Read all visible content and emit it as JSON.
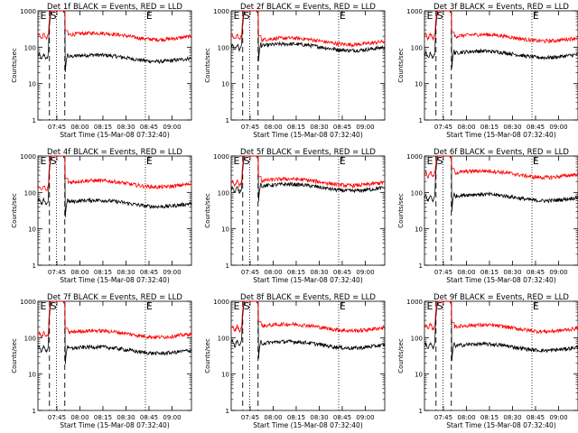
{
  "chart_data": {
    "type": "line",
    "xlabel_template": "Start Time ({start})",
    "start_time": "15-Mar-08 07:32:40",
    "ylabel": "Counts/sec",
    "yscale": "log",
    "ylim": [
      1,
      1000
    ],
    "y_ticks": [
      1,
      10,
      100,
      1000
    ],
    "x_ticks": [
      "07:45",
      "08:00",
      "08:15",
      "08:30",
      "08:45",
      "09:00"
    ],
    "markers": {
      "E": "E",
      "S": "S"
    },
    "colors": {
      "events": "#000000",
      "lld": "#ff0000"
    },
    "panels": [
      {
        "title": "Det 1f BLACK = Events, RED = LLD",
        "events_level": 55,
        "lld_level": 220,
        "events_pre": 55,
        "lld_pre": 200
      },
      {
        "title": "Det 2f BLACK = Events, RED = LLD",
        "events_level": 110,
        "lld_level": 160,
        "events_pre": 100,
        "lld_pre": 190
      },
      {
        "title": "Det 3f BLACK = Events, RED = LLD",
        "events_level": 70,
        "lld_level": 200,
        "events_pre": 60,
        "lld_pre": 200
      },
      {
        "title": "Det 4f BLACK = Events, RED = LLD",
        "events_level": 55,
        "lld_level": 190,
        "events_pre": 55,
        "lld_pre": 130
      },
      {
        "title": "Det 5f BLACK = Events, RED = LLD",
        "events_level": 150,
        "lld_level": 210,
        "events_pre": 120,
        "lld_pre": 180
      },
      {
        "title": "Det 6f BLACK = Events, RED = LLD",
        "events_level": 80,
        "lld_level": 350,
        "events_pre": 70,
        "lld_pre": 310
      },
      {
        "title": "Det 7f BLACK = Events, RED = LLD",
        "events_level": 50,
        "lld_level": 140,
        "events_pre": 50,
        "lld_pre": 120
      },
      {
        "title": "Det 8f BLACK = Events, RED = LLD",
        "events_level": 70,
        "lld_level": 210,
        "events_pre": 70,
        "lld_pre": 180
      },
      {
        "title": "Det 9f BLACK = Events, RED = LLD",
        "events_level": 60,
        "lld_level": 200,
        "events_pre": 60,
        "lld_pre": 200
      }
    ]
  }
}
